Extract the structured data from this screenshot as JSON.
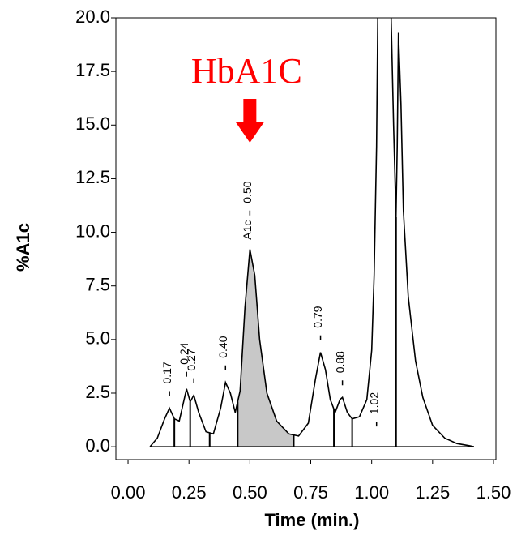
{
  "chart_data": {
    "type": "line",
    "xlabel": "Time (min.)",
    "ylabel": "%A1c",
    "xlim": [
      -0.05,
      1.51
    ],
    "ylim": [
      -0.6,
      20
    ],
    "xticks": [
      {
        "value": 0,
        "label": "0.00"
      },
      {
        "value": 0.25,
        "label": "0.25"
      },
      {
        "value": 0.5,
        "label": "0.50"
      },
      {
        "value": 0.75,
        "label": "0.75"
      },
      {
        "value": 1,
        "label": "1.00"
      },
      {
        "value": 1.25,
        "label": "1.25"
      },
      {
        "value": 1.5,
        "label": "1.50"
      }
    ],
    "yticks": [
      {
        "value": 0,
        "label": "0.0"
      },
      {
        "value": 2.5,
        "label": "2.5"
      },
      {
        "value": 5,
        "label": "5.0"
      },
      {
        "value": 7.5,
        "label": "7.5"
      },
      {
        "value": 10,
        "label": "10.0"
      },
      {
        "value": 12.5,
        "label": "12.5"
      },
      {
        "value": 15,
        "label": "15.0"
      },
      {
        "value": 17.5,
        "label": "17.5"
      },
      {
        "value": 20,
        "label": "20.0"
      }
    ],
    "series": [
      {
        "color": "#000000",
        "x": [
          0.09,
          0.12,
          0.15,
          0.17,
          0.19,
          0.21,
          0.23,
          0.24,
          0.255,
          0.27,
          0.29,
          0.32,
          0.35,
          0.38,
          0.4,
          0.42,
          0.44,
          0.46,
          0.48,
          0.5,
          0.52,
          0.54,
          0.57,
          0.61,
          0.66,
          0.7,
          0.74,
          0.77,
          0.79,
          0.81,
          0.83,
          0.85,
          0.87,
          0.88,
          0.9,
          0.92,
          0.95,
          0.98,
          1.0,
          1.01,
          1.02,
          1.025,
          1.05,
          1.08,
          1.09,
          1.1,
          1.105,
          1.11,
          1.12,
          1.13,
          1.15,
          1.18,
          1.21,
          1.25,
          1.3,
          1.35,
          1.4,
          1.42
        ],
        "y": [
          0,
          0.4,
          1.3,
          1.8,
          1.3,
          1.2,
          2.2,
          2.7,
          2.1,
          2.4,
          1.6,
          0.7,
          0.6,
          1.8,
          3.0,
          2.5,
          1.6,
          2.6,
          6.5,
          9.2,
          8.0,
          5.0,
          2.5,
          1.2,
          0.6,
          0.5,
          1.1,
          3.2,
          4.4,
          3.6,
          2.2,
          1.6,
          2.2,
          2.3,
          1.6,
          1.3,
          1.4,
          2.2,
          4.5,
          8,
          14,
          20,
          null,
          20,
          15,
          10.7,
          14,
          19.3,
          16,
          11,
          7,
          4,
          2.3,
          1.0,
          0.4,
          0.15,
          0.05,
          0
        ]
      }
    ],
    "drop_lines": [
      0.19,
      0.255,
      0.335,
      0.45,
      0.68,
      0.845,
      0.92,
      1.1
    ],
    "peaks": {
      "values": [
        0.17,
        0.24,
        0.27,
        0.4,
        0.5,
        0.79,
        0.88,
        1.02
      ],
      "value_labels": [
        "0.17",
        "0.24",
        "0.27",
        "0.40",
        "0.50",
        "0.79",
        "0.88",
        "1.02"
      ]
    },
    "annotations": [
      {
        "x": 0.5,
        "text": "A1c"
      }
    ],
    "highlight": {
      "x": 0.5,
      "text": "HbA1C",
      "color": "#ff0000"
    },
    "shade_color": "#c8c8c8"
  }
}
